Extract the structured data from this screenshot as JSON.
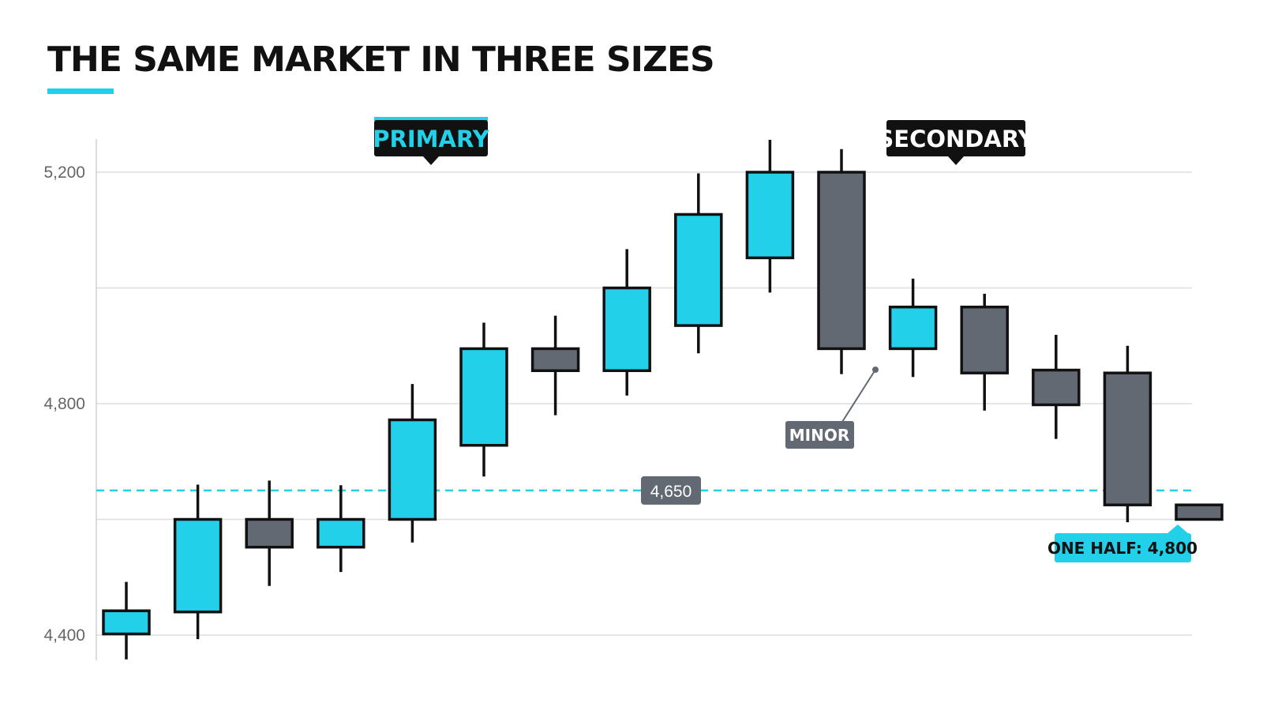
{
  "colors": {
    "up": "#22d0ea",
    "down": "#636973",
    "outline": "#111111",
    "grid": "#dedede",
    "accent": "#22d0ea",
    "label_dark": "#111111",
    "label_gray": "#636973"
  },
  "chart_data": {
    "type": "candlestick",
    "title": "THE SAME MARKET IN THREE SIZES",
    "xlabel": "",
    "ylabel": "",
    "ylim": [
      4355,
      5255
    ],
    "yticks": [
      4400,
      4800,
      5200
    ],
    "ytick_labels": [
      "4,400",
      "4,800",
      "5,200"
    ],
    "gridlines": [
      4400,
      4600,
      4800,
      5000,
      5200
    ],
    "grid": true,
    "candles": [
      {
        "open": 4402,
        "close": 4442,
        "high": 4492,
        "low": 4358
      },
      {
        "open": 4440,
        "close": 4600,
        "high": 4660,
        "low": 4393
      },
      {
        "open": 4600,
        "close": 4552,
        "high": 4667,
        "low": 4485
      },
      {
        "open": 4552,
        "close": 4600,
        "high": 4659,
        "low": 4509
      },
      {
        "open": 4600,
        "close": 4772,
        "high": 4834,
        "low": 4560
      },
      {
        "open": 4728,
        "close": 4895,
        "high": 4940,
        "low": 4674
      },
      {
        "open": 4895,
        "close": 4857,
        "high": 4952,
        "low": 4780
      },
      {
        "open": 4857,
        "close": 5000,
        "high": 5067,
        "low": 4814
      },
      {
        "open": 4935,
        "close": 5127,
        "high": 5198,
        "low": 4887
      },
      {
        "open": 5052,
        "close": 5200,
        "high": 5256,
        "low": 4992
      },
      {
        "open": 5200,
        "close": 4895,
        "high": 5240,
        "low": 4851
      },
      {
        "open": 4895,
        "close": 4967,
        "high": 5016,
        "low": 4846
      },
      {
        "open": 4967,
        "close": 4853,
        "high": 4990,
        "low": 4788
      },
      {
        "open": 4858,
        "close": 4798,
        "high": 4919,
        "low": 4739
      },
      {
        "open": 4853,
        "close": 4625,
        "high": 4900,
        "low": 4595
      },
      {
        "open": 4625,
        "close": 4600,
        "high": 4625,
        "low": 4600
      }
    ],
    "reference_line": {
      "value": 4650,
      "label": "4,650",
      "style": "dashed"
    },
    "annotations": {
      "primary": "PRIMARY",
      "secondary": "SECONDARY",
      "minor": "MINOR",
      "one_half": "ONE HALF: 4,800"
    }
  }
}
